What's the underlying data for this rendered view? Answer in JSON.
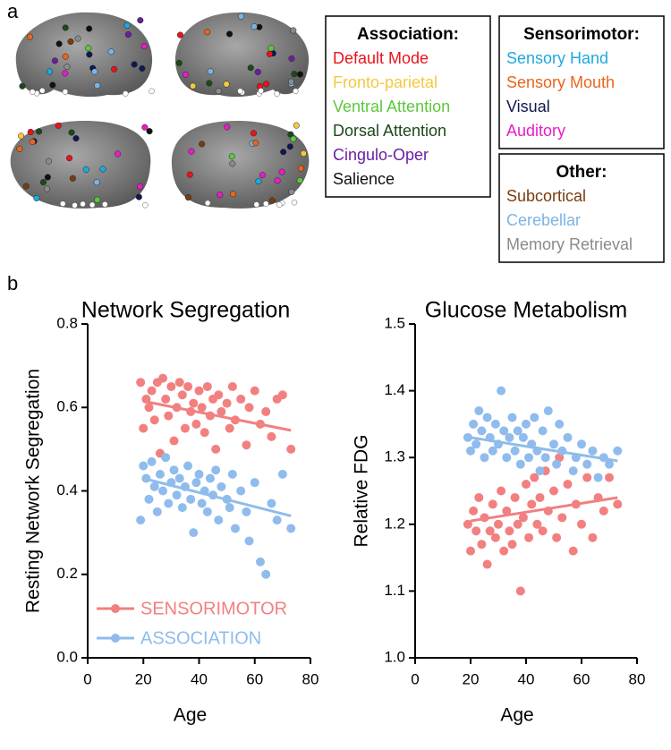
{
  "panel_labels": [
    "a",
    "b"
  ],
  "legend_boxes": [
    {
      "title": "Association:",
      "items": [
        {
          "label": "Default Mode",
          "color": "#e8141c"
        },
        {
          "label": "Fronto-parietal",
          "color": "#f5c842"
        },
        {
          "label": "Ventral Attention",
          "color": "#5cc83c"
        },
        {
          "label": "Dorsal Attention",
          "color": "#1a4a1a"
        },
        {
          "label": "Cingulo-Oper",
          "color": "#6a1fa0"
        },
        {
          "label": "Salience",
          "color": "#111111"
        }
      ]
    },
    {
      "title": "Sensorimotor:",
      "items": [
        {
          "label": "Sensory Hand",
          "color": "#1fa8e0"
        },
        {
          "label": "Sensory Mouth",
          "color": "#e8651c"
        },
        {
          "label": "Visual",
          "color": "#101850"
        },
        {
          "label": "Auditory",
          "color": "#e81cc8"
        }
      ]
    },
    {
      "title": "Other:",
      "items": [
        {
          "label": "Subcortical",
          "color": "#7a3c0c"
        },
        {
          "label": "Cerebellar",
          "color": "#7ab4e6"
        },
        {
          "label": "Memory Retrieval",
          "color": "#8a8a8a"
        }
      ]
    }
  ],
  "chart_data": [
    {
      "type": "scatter",
      "title": "Network Segregation",
      "x_label": "Age",
      "y_label": "Resting Network Segregation",
      "xlim": [
        0,
        80
      ],
      "xticks": [
        0,
        20,
        40,
        60,
        80
      ],
      "ylim": [
        0,
        0.8
      ],
      "yticks": [
        {
          "value": 0,
          "label": "0.0"
        },
        0.2,
        0.4,
        0.6,
        0.8
      ],
      "legend": "lower left",
      "series": [
        {
          "name": "SENSORIMOTOR",
          "color": "#f28080",
          "x": [
            19,
            20,
            21,
            22,
            23,
            24,
            25,
            26,
            27,
            28,
            29,
            30,
            31,
            32,
            33,
            34,
            35,
            36,
            37,
            38,
            39,
            40,
            41,
            42,
            43,
            44,
            45,
            46,
            47,
            48,
            50,
            51,
            52,
            53,
            55,
            57,
            58,
            60,
            62,
            64,
            66,
            68,
            70,
            73
          ],
          "values": [
            0.66,
            0.55,
            0.62,
            0.6,
            0.64,
            0.57,
            0.66,
            0.49,
            0.67,
            0.62,
            0.58,
            0.65,
            0.52,
            0.6,
            0.66,
            0.63,
            0.55,
            0.65,
            0.59,
            0.61,
            0.56,
            0.64,
            0.6,
            0.54,
            0.65,
            0.58,
            0.62,
            0.5,
            0.63,
            0.59,
            0.61,
            0.55,
            0.65,
            0.57,
            0.62,
            0.51,
            0.6,
            0.64,
            0.56,
            0.59,
            0.53,
            0.62,
            0.63,
            0.5
          ],
          "trend": {
            "x": [
              20,
              73
            ],
            "y": [
              0.615,
              0.545
            ]
          }
        },
        {
          "name": "ASSOCIATION",
          "color": "#8fbcec",
          "x": [
            19,
            20,
            21,
            22,
            23,
            24,
            25,
            26,
            27,
            28,
            29,
            30,
            31,
            32,
            33,
            34,
            35,
            36,
            37,
            38,
            39,
            40,
            41,
            42,
            43,
            44,
            45,
            46,
            47,
            48,
            50,
            51,
            52,
            53,
            55,
            57,
            58,
            60,
            62,
            64,
            66,
            68,
            70,
            73
          ],
          "values": [
            0.33,
            0.46,
            0.43,
            0.38,
            0.47,
            0.41,
            0.35,
            0.44,
            0.4,
            0.48,
            0.37,
            0.42,
            0.45,
            0.39,
            0.43,
            0.36,
            0.41,
            0.46,
            0.38,
            0.3,
            0.42,
            0.44,
            0.37,
            0.4,
            0.35,
            0.43,
            0.39,
            0.45,
            0.33,
            0.41,
            0.38,
            0.36,
            0.44,
            0.31,
            0.4,
            0.35,
            0.28,
            0.42,
            0.23,
            0.2,
            0.37,
            0.33,
            0.44,
            0.31
          ],
          "trend": {
            "x": [
              20,
              73
            ],
            "y": [
              0.43,
              0.34
            ]
          }
        }
      ]
    },
    {
      "type": "scatter",
      "title": "Glucose Metabolism",
      "x_label": "Age",
      "y_label": "Relative FDG",
      "xlim": [
        0,
        80
      ],
      "xticks": [
        0,
        20,
        40,
        60,
        80
      ],
      "ylim": [
        1.0,
        1.5
      ],
      "yticks": [
        {
          "value": 1.0,
          "label": "1.0"
        },
        1.1,
        1.2,
        1.3,
        1.4,
        1.5
      ],
      "series": [
        {
          "color": "#f28080",
          "x": [
            19,
            20,
            21,
            22,
            23,
            24,
            25,
            26,
            27,
            28,
            29,
            30,
            31,
            32,
            33,
            34,
            35,
            36,
            37,
            38,
            39,
            40,
            41,
            42,
            43,
            44,
            45,
            46,
            47,
            48,
            50,
            51,
            52,
            53,
            55,
            57,
            58,
            60,
            62,
            64,
            66,
            68,
            70,
            73
          ],
          "values": [
            1.2,
            1.16,
            1.22,
            1.19,
            1.24,
            1.17,
            1.21,
            1.14,
            1.19,
            1.23,
            1.18,
            1.2,
            1.25,
            1.16,
            1.22,
            1.19,
            1.17,
            1.24,
            1.2,
            1.1,
            1.21,
            1.26,
            1.18,
            1.23,
            1.27,
            1.2,
            1.24,
            1.19,
            1.28,
            1.22,
            1.25,
            1.18,
            1.3,
            1.21,
            1.26,
            1.16,
            1.23,
            1.2,
            1.27,
            1.18,
            1.24,
            1.22,
            1.27,
            1.23
          ],
          "trend": {
            "x": [
              20,
              73
            ],
            "y": [
              1.205,
              1.24
            ]
          }
        },
        {
          "color": "#8fbcec",
          "x": [
            19,
            20,
            21,
            22,
            23,
            24,
            25,
            26,
            27,
            28,
            29,
            30,
            31,
            32,
            33,
            34,
            35,
            36,
            37,
            38,
            39,
            40,
            41,
            42,
            43,
            44,
            45,
            46,
            47,
            48,
            50,
            51,
            52,
            53,
            55,
            57,
            58,
            60,
            62,
            64,
            66,
            68,
            70,
            73
          ],
          "values": [
            1.33,
            1.31,
            1.35,
            1.32,
            1.37,
            1.34,
            1.3,
            1.36,
            1.33,
            1.31,
            1.35,
            1.32,
            1.4,
            1.34,
            1.3,
            1.33,
            1.36,
            1.31,
            1.34,
            1.29,
            1.33,
            1.35,
            1.3,
            1.32,
            1.36,
            1.31,
            1.28,
            1.34,
            1.3,
            1.37,
            1.32,
            1.29,
            1.35,
            1.31,
            1.33,
            1.28,
            1.3,
            1.32,
            1.29,
            1.31,
            1.27,
            1.3,
            1.29,
            1.31
          ],
          "trend": {
            "x": [
              20,
              73
            ],
            "y": [
              1.33,
              1.295
            ]
          }
        }
      ]
    }
  ]
}
